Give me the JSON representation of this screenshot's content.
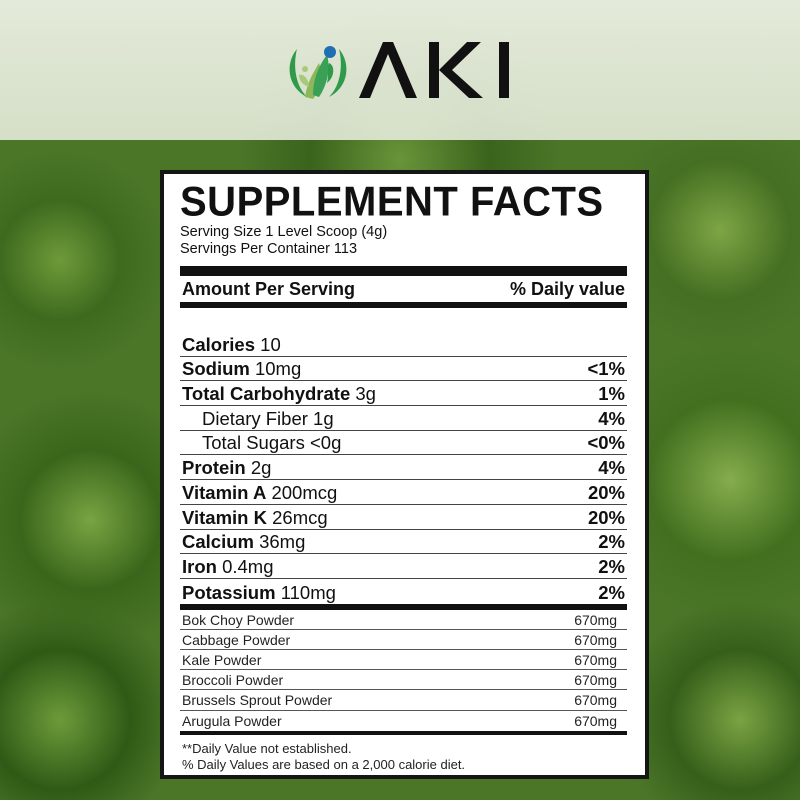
{
  "brand": {
    "logo_text": "AKI",
    "colors": {
      "green": "#2f9a4a",
      "light_green": "#8cb85a",
      "blue": "#1f6fb5"
    }
  },
  "label": {
    "title": "SUPPLEMENT FACTS",
    "serving_size": "Serving Size 1 Level Scoop (4g)",
    "servings_per_container": "Servings Per Container 113",
    "header_left": "Amount Per Serving",
    "header_right": "% Daily value",
    "nutrients": [
      {
        "name": "Calories",
        "amount": "10",
        "dv": ""
      },
      {
        "name": "Sodium",
        "amount": "10mg",
        "dv": "<1%"
      },
      {
        "name": "Total Carbohydrate",
        "amount": "3g",
        "dv": "1%"
      },
      {
        "name": "",
        "amount": "Dietary Fiber 1g",
        "dv": "4%"
      },
      {
        "name": "",
        "amount": "Total Sugars <0g",
        "dv": "<0%"
      },
      {
        "name": "Protein",
        "amount": "2g",
        "dv": "4%"
      },
      {
        "name": "Vitamin A",
        "amount": "200mcg",
        "dv": "20%"
      },
      {
        "name": "Vitamin K",
        "amount": "26mcg",
        "dv": "20%"
      },
      {
        "name": "Calcium",
        "amount": "36mg",
        "dv": "2%"
      },
      {
        "name": "Iron",
        "amount": "0.4mg",
        "dv": "2%"
      },
      {
        "name": "Potassium",
        "amount": "110mg",
        "dv": "2%"
      }
    ],
    "ingredients": [
      {
        "name": "Bok Choy Powder",
        "amount": "670mg"
      },
      {
        "name": "Cabbage Powder",
        "amount": "670mg"
      },
      {
        "name": "Kale Powder",
        "amount": "670mg"
      },
      {
        "name": "Broccoli Powder",
        "amount": "670mg"
      },
      {
        "name": "Brussels Sprout Powder",
        "amount": "670mg"
      },
      {
        "name": "Arugula Powder",
        "amount": "670mg"
      }
    ],
    "footnote_1": "**Daily Value not established.",
    "footnote_2": "% Daily Values are based on a 2,000 calorie diet."
  }
}
